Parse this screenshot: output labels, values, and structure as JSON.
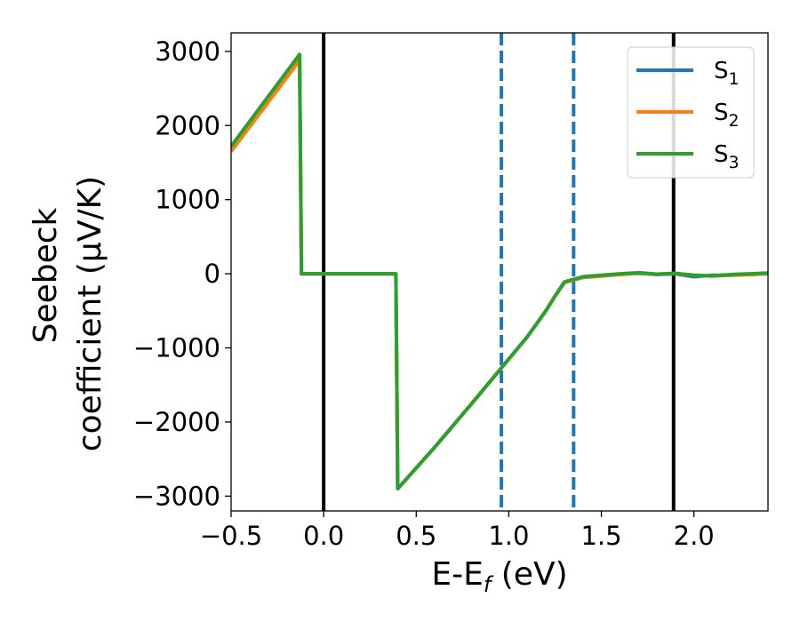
{
  "chart_data": {
    "type": "line",
    "title": "",
    "xlabel": {
      "main": "E-E",
      "sub": "f",
      "suffix": " (eV)"
    },
    "ylabel": {
      "line1": "Seebeck",
      "line2": "coefficient  (μV/K)"
    },
    "xlim": [
      -0.5,
      2.4
    ],
    "ylim": [
      -3200,
      3250
    ],
    "x_ticks": [
      -0.5,
      0.0,
      0.5,
      1.0,
      1.5,
      2.0
    ],
    "x_tick_labels": [
      "−0.5",
      "0.0",
      "0.5",
      "1.0",
      "1.5",
      "2.0"
    ],
    "y_ticks": [
      3000,
      2000,
      1000,
      0,
      -1000,
      -2000,
      -3000
    ],
    "y_tick_labels": [
      "3000",
      "2000",
      "1000",
      "0",
      "−1000",
      "−2000",
      "−3000"
    ],
    "grid": false,
    "legend_position": "top-right",
    "vertical_lines": [
      {
        "x": 0.0,
        "style": "solid",
        "color": "#000000"
      },
      {
        "x": 0.96,
        "style": "dashed",
        "color": "#1f77b4"
      },
      {
        "x": 1.35,
        "style": "dashed",
        "color": "#1f77b4"
      },
      {
        "x": 1.89,
        "style": "solid",
        "color": "#000000"
      }
    ],
    "series": [
      {
        "name": "S",
        "sub": "1",
        "color": "#1f77b4",
        "points": [
          [
            -0.5,
            1700
          ],
          [
            -0.13,
            2930
          ],
          [
            -0.12,
            0
          ],
          [
            0.39,
            0
          ],
          [
            0.4,
            -2900
          ],
          [
            0.6,
            -2340
          ],
          [
            0.8,
            -1750
          ],
          [
            1.0,
            -1150
          ],
          [
            1.1,
            -850
          ],
          [
            1.2,
            -500
          ],
          [
            1.25,
            -300
          ],
          [
            1.3,
            -120
          ],
          [
            1.4,
            -50
          ],
          [
            1.5,
            -30
          ],
          [
            1.6,
            -10
          ],
          [
            1.7,
            5
          ],
          [
            1.8,
            -10
          ],
          [
            1.9,
            0
          ],
          [
            2.0,
            -40
          ],
          [
            2.1,
            -20
          ],
          [
            2.2,
            -20
          ],
          [
            2.3,
            -10
          ],
          [
            2.4,
            0
          ]
        ]
      },
      {
        "name": "S",
        "sub": "2",
        "color": "#ff7f0e",
        "points": [
          [
            -0.5,
            1650
          ],
          [
            -0.13,
            2880
          ],
          [
            -0.12,
            0
          ],
          [
            0.39,
            0
          ],
          [
            0.4,
            -2900
          ],
          [
            0.6,
            -2340
          ],
          [
            0.8,
            -1750
          ],
          [
            1.0,
            -1150
          ],
          [
            1.1,
            -850
          ],
          [
            1.2,
            -500
          ],
          [
            1.25,
            -300
          ],
          [
            1.3,
            -120
          ],
          [
            1.4,
            -50
          ],
          [
            1.5,
            -30
          ],
          [
            1.6,
            -10
          ],
          [
            1.7,
            5
          ],
          [
            1.8,
            -5
          ],
          [
            1.9,
            5
          ],
          [
            2.0,
            -20
          ],
          [
            2.1,
            -30
          ],
          [
            2.2,
            -20
          ],
          [
            2.3,
            -10
          ],
          [
            2.4,
            0
          ]
        ]
      },
      {
        "name": "S",
        "sub": "3",
        "color": "#2ca02c",
        "points": [
          [
            -0.5,
            1720
          ],
          [
            -0.13,
            2960
          ],
          [
            -0.12,
            0
          ],
          [
            0.39,
            0
          ],
          [
            0.4,
            -2900
          ],
          [
            0.6,
            -2340
          ],
          [
            0.8,
            -1750
          ],
          [
            1.0,
            -1150
          ],
          [
            1.1,
            -850
          ],
          [
            1.2,
            -500
          ],
          [
            1.25,
            -300
          ],
          [
            1.3,
            -110
          ],
          [
            1.4,
            -40
          ],
          [
            1.5,
            -20
          ],
          [
            1.6,
            0
          ],
          [
            1.7,
            15
          ],
          [
            1.8,
            -5
          ],
          [
            1.9,
            5
          ],
          [
            2.0,
            -20
          ],
          [
            2.1,
            -30
          ],
          [
            2.2,
            -10
          ],
          [
            2.3,
            0
          ],
          [
            2.4,
            10
          ]
        ]
      }
    ]
  }
}
